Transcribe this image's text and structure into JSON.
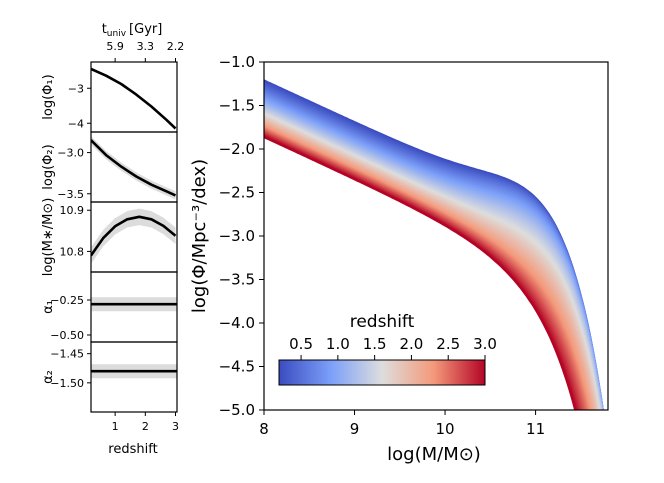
{
  "chart_data": [
    {
      "type": "line",
      "panel": "main",
      "title": "",
      "xlabel": "log(M/M⊙)",
      "ylabel": "log(Φ/Mpc⁻³/dex)",
      "xlim": [
        8.0,
        11.8
      ],
      "ylim": [
        -5.0,
        -1.0
      ],
      "xticks": [
        "8",
        "9",
        "10",
        "11"
      ],
      "yticks": [
        "−1.0",
        "−1.5",
        "−2.0",
        "−2.5",
        "−3.0",
        "−3.5",
        "−4.0",
        "−4.5",
        "−5.0"
      ],
      "description": "Family of double-Schechter stellar mass functions coloured by redshift (0.2 to 3.0)",
      "series": [
        {
          "name": "z=0.2 (upper envelope, blue)",
          "x": [
            8.0,
            8.5,
            9.0,
            9.5,
            10.0,
            10.5,
            10.8,
            11.0,
            11.2,
            11.4,
            11.6,
            11.7
          ],
          "values": [
            -1.2,
            -1.42,
            -1.64,
            -1.85,
            -2.03,
            -2.17,
            -2.22,
            -2.33,
            -2.69,
            -3.39,
            -4.5,
            -5.0
          ]
        },
        {
          "name": "z=3.0 (lower envelope, red)",
          "x": [
            8.0,
            8.5,
            9.0,
            9.5,
            10.0,
            10.5,
            10.8,
            11.0,
            11.2,
            11.4,
            11.5
          ],
          "values": [
            -1.85,
            -2.15,
            -2.42,
            -2.7,
            -2.96,
            -3.28,
            -3.62,
            -3.98,
            -4.42,
            -4.8,
            -5.0
          ]
        }
      ],
      "colorbar": {
        "label": "redshift",
        "range": [
          0.2,
          3.0
        ],
        "ticks": [
          "0.5",
          "1.0",
          "1.5",
          "2.0",
          "2.5",
          "3.0"
        ],
        "tick_values": [
          0.5,
          1.0,
          1.5,
          2.0,
          2.5,
          3.0
        ],
        "colors": [
          "#3b4cc0",
          "#7b9ff9",
          "#dddddd",
          "#f49a7b",
          "#b40426"
        ]
      }
    },
    {
      "type": "line",
      "panel": "logPhi1",
      "ylabel": "log(Φ₁)",
      "xlim": [
        0.2,
        3.05
      ],
      "ylim": [
        -4.25,
        -2.25
      ],
      "yticks": [
        "−3",
        "−4"
      ],
      "ytick_values": [
        -3,
        -4
      ],
      "x": [
        0.2,
        0.7,
        1.2,
        1.7,
        2.2,
        2.7,
        3.0
      ],
      "values": [
        -2.45,
        -2.64,
        -2.88,
        -3.18,
        -3.52,
        -3.9,
        -4.15
      ]
    },
    {
      "type": "line",
      "panel": "logPhi2",
      "ylabel": "log(Φ₂)",
      "xlim": [
        0.2,
        3.05
      ],
      "ylim": [
        -3.6,
        -2.75
      ],
      "yticks": [
        "−3.0",
        "−3.5"
      ],
      "ytick_values": [
        -3.0,
        -3.5
      ],
      "x": [
        0.2,
        0.7,
        1.2,
        1.7,
        2.2,
        2.7,
        3.0
      ],
      "values": [
        -2.85,
        -3.03,
        -3.17,
        -3.29,
        -3.39,
        -3.47,
        -3.52
      ],
      "band_halfwidth": 0.05
    },
    {
      "type": "line",
      "panel": "logMstar",
      "ylabel": "log(M∗/M⊙)",
      "xlim": [
        0.2,
        3.05
      ],
      "ylim": [
        10.75,
        10.92
      ],
      "yticks": [
        "10.9",
        "10.8"
      ],
      "ytick_values": [
        10.9,
        10.8
      ],
      "x": [
        0.2,
        0.6,
        1.0,
        1.4,
        1.8,
        2.2,
        2.6,
        3.0
      ],
      "values": [
        10.79,
        10.832,
        10.861,
        10.878,
        10.884,
        10.878,
        10.862,
        10.838
      ],
      "band_halfwidth": 0.02
    },
    {
      "type": "line",
      "panel": "alpha1",
      "ylabel": "α₁",
      "xlim": [
        0.2,
        3.05
      ],
      "ylim": [
        -0.55,
        -0.05
      ],
      "yticks": [
        "−0.25",
        "−0.50"
      ],
      "ytick_values": [
        -0.25,
        -0.5
      ],
      "x": [
        0.2,
        3.05
      ],
      "values": [
        -0.28,
        -0.28
      ],
      "band_halfwidth": 0.05
    },
    {
      "type": "line",
      "panel": "alpha2",
      "ylabel": "α₂",
      "xlim": [
        0.2,
        3.05
      ],
      "ylim": [
        -1.55,
        -1.43
      ],
      "yticks": [
        "−1.45",
        "−1.50"
      ],
      "ytick_values": [
        -1.45,
        -1.5
      ],
      "xticks": [
        "1",
        "2",
        "3"
      ],
      "xtick_values": [
        1,
        2,
        3
      ],
      "xlabel": "redshift",
      "x": [
        0.2,
        3.05
      ],
      "values": [
        -1.48,
        -1.48
      ],
      "band_halfwidth": 0.012
    },
    {
      "type": "axis",
      "panel": "top_axis",
      "label": "t",
      "label_sub": "univ",
      "label_unit": "[Gyr]",
      "ticks": [
        "5.9",
        "3.3",
        "2.2"
      ],
      "tick_z": [
        1.0,
        2.0,
        3.0
      ]
    }
  ]
}
